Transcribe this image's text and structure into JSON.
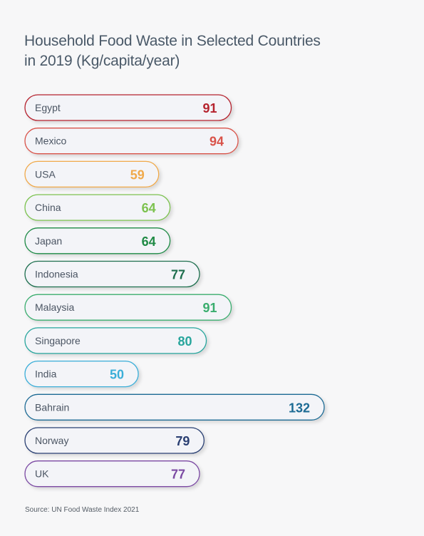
{
  "header": {
    "title_line1": "Household Food Waste in Selected Countries",
    "title_line2": "in 2019 (Kg/capita/year)"
  },
  "footer": {
    "source": "Source: UN Food Waste Index 2021"
  },
  "chart_data": {
    "type": "bar",
    "orientation": "horizontal",
    "title": "Household Food Waste in Selected Countries in 2019 (Kg/capita/year)",
    "categories": [
      "Egypt",
      "Mexico",
      "USA",
      "China",
      "Japan",
      "Indonesia",
      "Malaysia",
      "Singapore",
      "India",
      "Bahrain",
      "Norway",
      "UK"
    ],
    "values": [
      91,
      94,
      59,
      64,
      64,
      77,
      91,
      80,
      50,
      132,
      79,
      77
    ],
    "colors": [
      "#b5232e",
      "#d9534a",
      "#f0a94a",
      "#7cc24f",
      "#1f8a45",
      "#1e6e4e",
      "#3aad6e",
      "#27a59c",
      "#3aaed8",
      "#1d6b94",
      "#2a3f72",
      "#7b4aa3"
    ],
    "bar_fill": "#f3f4f8",
    "xlim": [
      0,
      132
    ],
    "grid": false,
    "legend": "none"
  }
}
